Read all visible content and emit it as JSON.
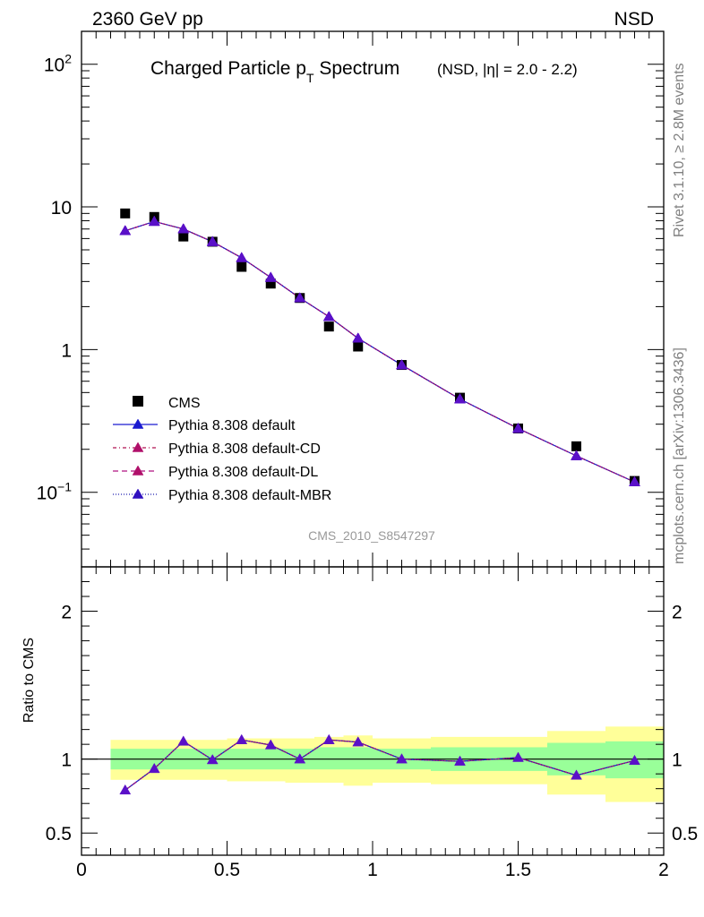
{
  "header": {
    "energy": "2360 GeV pp",
    "process": "NSD"
  },
  "sidebar": {
    "rivet": "Rivet 3.1.10, ≥ 2.8M events",
    "mcplots": "mcplots.cern.ch [arXiv:1306.3436]"
  },
  "chart_data": [
    {
      "type": "scatter",
      "title_main": "Charged Particle p",
      "title_sub": "T",
      "title_rest": " Spectrum",
      "title_detail": "(NSD, |η| = 2.0 - 2.2)",
      "watermark": "CMS_2010_S8547297",
      "yscale": "log",
      "xlim": [
        0,
        2
      ],
      "ylim": [
        0.03,
        170
      ],
      "yticks": [
        {
          "v": 100,
          "base": "10",
          "exp": "2"
        },
        {
          "v": 10,
          "base": "10",
          "exp": ""
        },
        {
          "v": 1,
          "base": "1",
          "exp": ""
        },
        {
          "v": 0.1,
          "base": "10",
          "exp": "−1"
        }
      ],
      "legend_position": "lower-left",
      "data": {
        "name": "CMS",
        "x": [
          0.15,
          0.25,
          0.35,
          0.45,
          0.55,
          0.65,
          0.75,
          0.85,
          0.95,
          1.1,
          1.3,
          1.5,
          1.7,
          1.9
        ],
        "y": [
          9.0,
          8.5,
          6.2,
          5.7,
          3.8,
          2.9,
          2.3,
          1.45,
          1.05,
          0.78,
          0.46,
          0.28,
          0.21,
          0.12
        ]
      },
      "series": [
        {
          "name": "Pythia 8.308 default",
          "color": "#1a1ad0",
          "dash": "",
          "y": [
            6.8,
            7.9,
            7.0,
            5.7,
            4.4,
            3.2,
            2.3,
            1.7,
            1.2,
            0.78,
            0.45,
            0.28,
            0.18,
            0.118
          ]
        },
        {
          "name": "Pythia 8.308 default-CD",
          "color": "#b01050",
          "dash": "4,3,1,3",
          "y": [
            6.8,
            7.9,
            7.0,
            5.7,
            4.4,
            3.2,
            2.3,
            1.7,
            1.2,
            0.78,
            0.45,
            0.28,
            0.18,
            0.118
          ]
        },
        {
          "name": "Pythia 8.308 default-DL",
          "color": "#b01080",
          "dash": "6,4",
          "y": [
            6.8,
            7.9,
            7.0,
            5.7,
            4.4,
            3.2,
            2.3,
            1.7,
            1.2,
            0.78,
            0.45,
            0.28,
            0.18,
            0.118
          ]
        },
        {
          "name": "Pythia 8.308 default-MBR",
          "color": "#2020b0",
          "dash": "1,2",
          "y": [
            6.8,
            7.9,
            7.0,
            5.7,
            4.4,
            3.2,
            2.3,
            1.7,
            1.2,
            0.78,
            0.45,
            0.28,
            0.18,
            0.118
          ]
        }
      ],
      "marker_color": "#5a10c8"
    },
    {
      "type": "line",
      "ylabel": "Ratio to CMS",
      "xlim": [
        0,
        2
      ],
      "ylim": [
        0.35,
        2.3
      ],
      "xticks": [
        "0",
        "0.5",
        "1",
        "1.5",
        "2"
      ],
      "yticks": [
        "0.5",
        "1",
        "2"
      ],
      "bands": {
        "edges": [
          0.1,
          0.2,
          0.3,
          0.4,
          0.5,
          0.6,
          0.7,
          0.8,
          0.9,
          1.0,
          1.2,
          1.4,
          1.6,
          1.8,
          2.0
        ],
        "inner_lo": [
          0.93,
          0.93,
          0.93,
          0.93,
          0.93,
          0.93,
          0.93,
          0.93,
          0.93,
          0.93,
          0.92,
          0.92,
          0.89,
          0.87
        ],
        "inner_hi": [
          1.07,
          1.07,
          1.07,
          1.07,
          1.07,
          1.07,
          1.07,
          1.08,
          1.08,
          1.07,
          1.08,
          1.08,
          1.11,
          1.12
        ],
        "outer_lo": [
          0.86,
          0.86,
          0.86,
          0.86,
          0.85,
          0.85,
          0.84,
          0.84,
          0.82,
          0.84,
          0.83,
          0.83,
          0.76,
          0.71
        ],
        "outer_hi": [
          1.13,
          1.13,
          1.13,
          1.13,
          1.14,
          1.14,
          1.14,
          1.15,
          1.16,
          1.14,
          1.15,
          1.15,
          1.19,
          1.22
        ],
        "inner_color": "#99ff99",
        "outer_color": "#ffff99"
      },
      "ratio_y": [
        0.79,
        0.935,
        1.12,
        0.995,
        1.13,
        1.095,
        1.0,
        1.13,
        1.115,
        1.0,
        0.985,
        1.01,
        0.89,
        0.99
      ]
    }
  ]
}
